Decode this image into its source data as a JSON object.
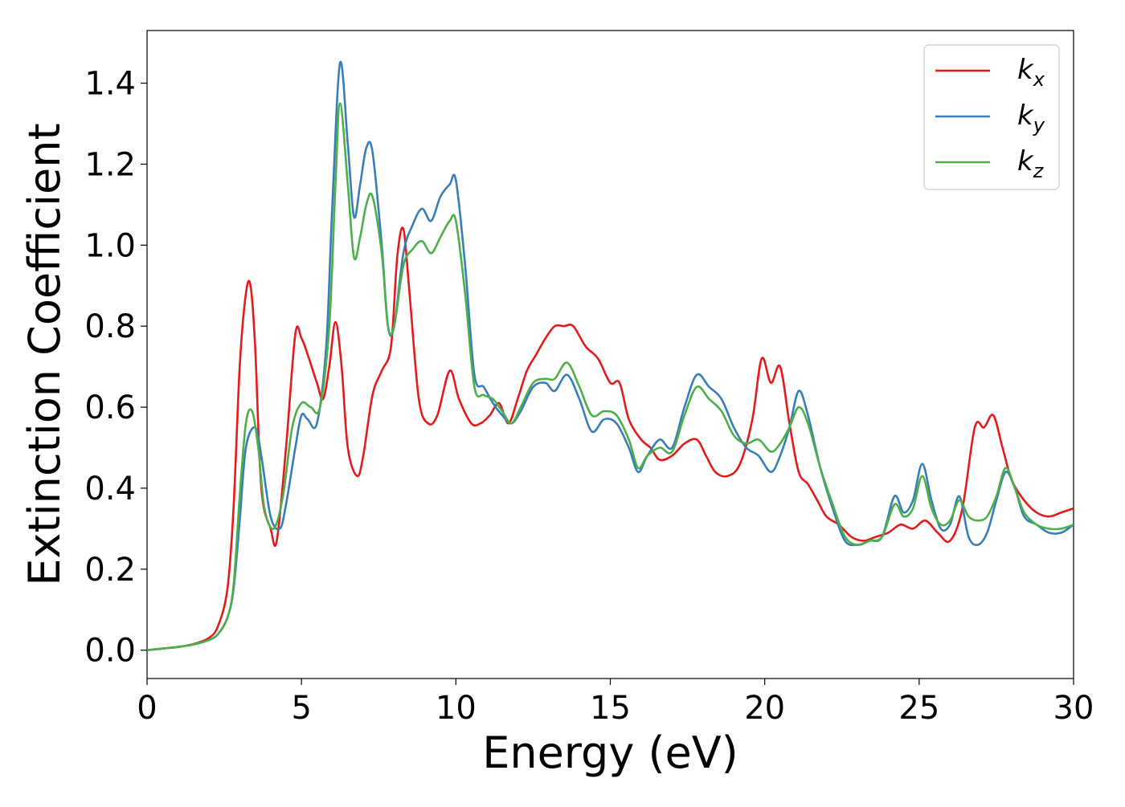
{
  "chart_data": {
    "type": "line",
    "title": "",
    "xlabel": "Energy (eV)",
    "ylabel": "Extinction Coefficient",
    "xlim": [
      0,
      30
    ],
    "ylim": [
      -0.07,
      1.53
    ],
    "xticks": [
      0,
      5,
      10,
      15,
      20,
      25,
      30
    ],
    "xtick_labels": [
      "0",
      "5",
      "10",
      "15",
      "20",
      "25",
      "30"
    ],
    "yticks": [
      0.0,
      0.2,
      0.4,
      0.6,
      0.8,
      1.0,
      1.2,
      1.4
    ],
    "ytick_labels": [
      "0.0",
      "0.2",
      "0.4",
      "0.6",
      "0.8",
      "1.0",
      "1.2",
      "1.4"
    ],
    "grid": false,
    "legend_position": "top-right",
    "series": [
      {
        "name": "kx",
        "label_base": "k",
        "label_sub": "x",
        "color": "#e41a1c",
        "x": [
          0,
          0.5,
          1,
          1.5,
          2,
          2.3,
          2.6,
          2.8,
          3.0,
          3.2,
          3.35,
          3.5,
          3.7,
          4.0,
          4.2,
          4.5,
          4.8,
          5.0,
          5.2,
          5.5,
          5.7,
          5.9,
          6.1,
          6.3,
          6.5,
          6.8,
          7.0,
          7.3,
          7.6,
          7.9,
          8.1,
          8.3,
          8.5,
          8.8,
          9.1,
          9.4,
          9.8,
          10.1,
          10.5,
          10.8,
          11.1,
          11.4,
          11.7,
          12.0,
          12.3,
          12.6,
          12.9,
          13.2,
          13.5,
          13.8,
          14.2,
          14.6,
          15.0,
          15.3,
          15.6,
          16.0,
          16.3,
          16.6,
          17.0,
          17.4,
          17.8,
          18.1,
          18.4,
          18.8,
          19.2,
          19.6,
          19.9,
          20.2,
          20.5,
          20.8,
          21.1,
          21.4,
          21.7,
          22.0,
          22.4,
          22.8,
          23.2,
          23.6,
          24.0,
          24.4,
          24.8,
          25.2,
          25.6,
          26.0,
          26.4,
          26.8,
          27.1,
          27.4,
          27.7,
          28.0,
          28.4,
          28.8,
          29.2,
          29.6,
          30.0
        ],
        "y": [
          0.0,
          0.004,
          0.008,
          0.015,
          0.03,
          0.06,
          0.15,
          0.35,
          0.7,
          0.88,
          0.9,
          0.75,
          0.4,
          0.3,
          0.27,
          0.5,
          0.78,
          0.77,
          0.73,
          0.66,
          0.62,
          0.7,
          0.81,
          0.7,
          0.5,
          0.43,
          0.48,
          0.63,
          0.69,
          0.75,
          0.97,
          1.04,
          0.88,
          0.62,
          0.56,
          0.58,
          0.69,
          0.62,
          0.56,
          0.56,
          0.58,
          0.61,
          0.56,
          0.62,
          0.69,
          0.73,
          0.77,
          0.8,
          0.8,
          0.8,
          0.75,
          0.72,
          0.66,
          0.66,
          0.57,
          0.52,
          0.5,
          0.47,
          0.48,
          0.51,
          0.52,
          0.48,
          0.44,
          0.43,
          0.46,
          0.57,
          0.72,
          0.66,
          0.7,
          0.56,
          0.44,
          0.41,
          0.37,
          0.33,
          0.31,
          0.28,
          0.27,
          0.28,
          0.29,
          0.31,
          0.3,
          0.32,
          0.29,
          0.27,
          0.35,
          0.55,
          0.55,
          0.58,
          0.5,
          0.42,
          0.37,
          0.34,
          0.33,
          0.34,
          0.35
        ]
      },
      {
        "name": "ky",
        "label_base": "k",
        "label_sub": "y",
        "color": "#377eb8",
        "x": [
          0,
          0.5,
          1,
          1.5,
          2,
          2.3,
          2.6,
          2.8,
          3.0,
          3.2,
          3.5,
          3.7,
          4.0,
          4.3,
          4.5,
          4.8,
          5.0,
          5.2,
          5.5,
          5.8,
          6.0,
          6.25,
          6.5,
          6.7,
          6.9,
          7.1,
          7.3,
          7.6,
          7.8,
          8.0,
          8.3,
          8.6,
          8.9,
          9.2,
          9.5,
          9.8,
          10.0,
          10.3,
          10.6,
          10.9,
          11.2,
          11.5,
          11.8,
          12.1,
          12.5,
          12.9,
          13.2,
          13.6,
          14.0,
          14.4,
          14.8,
          15.2,
          15.6,
          15.9,
          16.2,
          16.6,
          17.0,
          17.4,
          17.8,
          18.2,
          18.6,
          19.0,
          19.4,
          19.8,
          20.2,
          20.5,
          20.8,
          21.1,
          21.4,
          21.8,
          22.2,
          22.6,
          23.0,
          23.4,
          23.8,
          24.2,
          24.5,
          24.8,
          25.1,
          25.4,
          25.7,
          26.0,
          26.3,
          26.6,
          26.9,
          27.2,
          27.5,
          27.8,
          28.1,
          28.4,
          28.8,
          29.2,
          29.6,
          30.0
        ],
        "y": [
          0.0,
          0.004,
          0.008,
          0.014,
          0.025,
          0.04,
          0.08,
          0.15,
          0.32,
          0.5,
          0.55,
          0.48,
          0.33,
          0.3,
          0.36,
          0.5,
          0.58,
          0.57,
          0.56,
          0.75,
          1.1,
          1.45,
          1.25,
          1.07,
          1.15,
          1.24,
          1.23,
          1.0,
          0.8,
          0.8,
          0.98,
          1.05,
          1.09,
          1.06,
          1.12,
          1.15,
          1.16,
          0.95,
          0.68,
          0.65,
          0.61,
          0.58,
          0.56,
          0.59,
          0.65,
          0.66,
          0.64,
          0.68,
          0.62,
          0.54,
          0.57,
          0.56,
          0.5,
          0.44,
          0.48,
          0.52,
          0.5,
          0.6,
          0.68,
          0.65,
          0.62,
          0.55,
          0.5,
          0.48,
          0.44,
          0.48,
          0.55,
          0.64,
          0.58,
          0.45,
          0.35,
          0.27,
          0.26,
          0.27,
          0.28,
          0.38,
          0.34,
          0.37,
          0.46,
          0.37,
          0.3,
          0.31,
          0.38,
          0.28,
          0.26,
          0.29,
          0.37,
          0.44,
          0.4,
          0.33,
          0.31,
          0.29,
          0.29,
          0.31
        ]
      },
      {
        "name": "kz",
        "label_base": "k",
        "label_sub": "z",
        "color": "#4daf4a",
        "x": [
          0,
          0.5,
          1,
          1.5,
          2,
          2.3,
          2.6,
          2.8,
          3.0,
          3.2,
          3.4,
          3.6,
          3.8,
          4.1,
          4.4,
          4.7,
          5.0,
          5.3,
          5.6,
          5.9,
          6.1,
          6.25,
          6.5,
          6.7,
          6.9,
          7.1,
          7.3,
          7.6,
          7.8,
          8.0,
          8.3,
          8.6,
          8.9,
          9.2,
          9.5,
          9.8,
          10.0,
          10.3,
          10.6,
          10.9,
          11.2,
          11.5,
          11.8,
          12.1,
          12.5,
          12.9,
          13.2,
          13.6,
          14.0,
          14.4,
          14.8,
          15.2,
          15.6,
          15.9,
          16.2,
          16.6,
          17.0,
          17.4,
          17.8,
          18.2,
          18.6,
          19.0,
          19.4,
          19.8,
          20.2,
          20.5,
          20.8,
          21.1,
          21.4,
          21.8,
          22.2,
          22.6,
          23.0,
          23.4,
          23.8,
          24.2,
          24.5,
          24.8,
          25.1,
          25.4,
          25.7,
          26.0,
          26.3,
          26.6,
          26.9,
          27.2,
          27.5,
          27.8,
          28.1,
          28.4,
          28.8,
          29.2,
          29.6,
          30.0
        ],
        "y": [
          0.0,
          0.004,
          0.008,
          0.014,
          0.025,
          0.04,
          0.08,
          0.16,
          0.38,
          0.56,
          0.59,
          0.5,
          0.35,
          0.3,
          0.38,
          0.55,
          0.61,
          0.6,
          0.6,
          0.8,
          1.15,
          1.35,
          1.15,
          0.97,
          1.02,
          1.1,
          1.12,
          0.98,
          0.8,
          0.8,
          0.95,
          0.99,
          1.01,
          0.98,
          1.02,
          1.06,
          1.06,
          0.88,
          0.65,
          0.63,
          0.62,
          0.59,
          0.56,
          0.6,
          0.66,
          0.67,
          0.67,
          0.71,
          0.65,
          0.58,
          0.59,
          0.58,
          0.52,
          0.45,
          0.48,
          0.5,
          0.49,
          0.58,
          0.65,
          0.62,
          0.59,
          0.53,
          0.51,
          0.52,
          0.49,
          0.51,
          0.55,
          0.6,
          0.56,
          0.45,
          0.36,
          0.28,
          0.26,
          0.27,
          0.28,
          0.36,
          0.33,
          0.35,
          0.43,
          0.35,
          0.31,
          0.32,
          0.37,
          0.33,
          0.32,
          0.33,
          0.38,
          0.45,
          0.4,
          0.34,
          0.31,
          0.3,
          0.3,
          0.31
        ]
      }
    ]
  }
}
